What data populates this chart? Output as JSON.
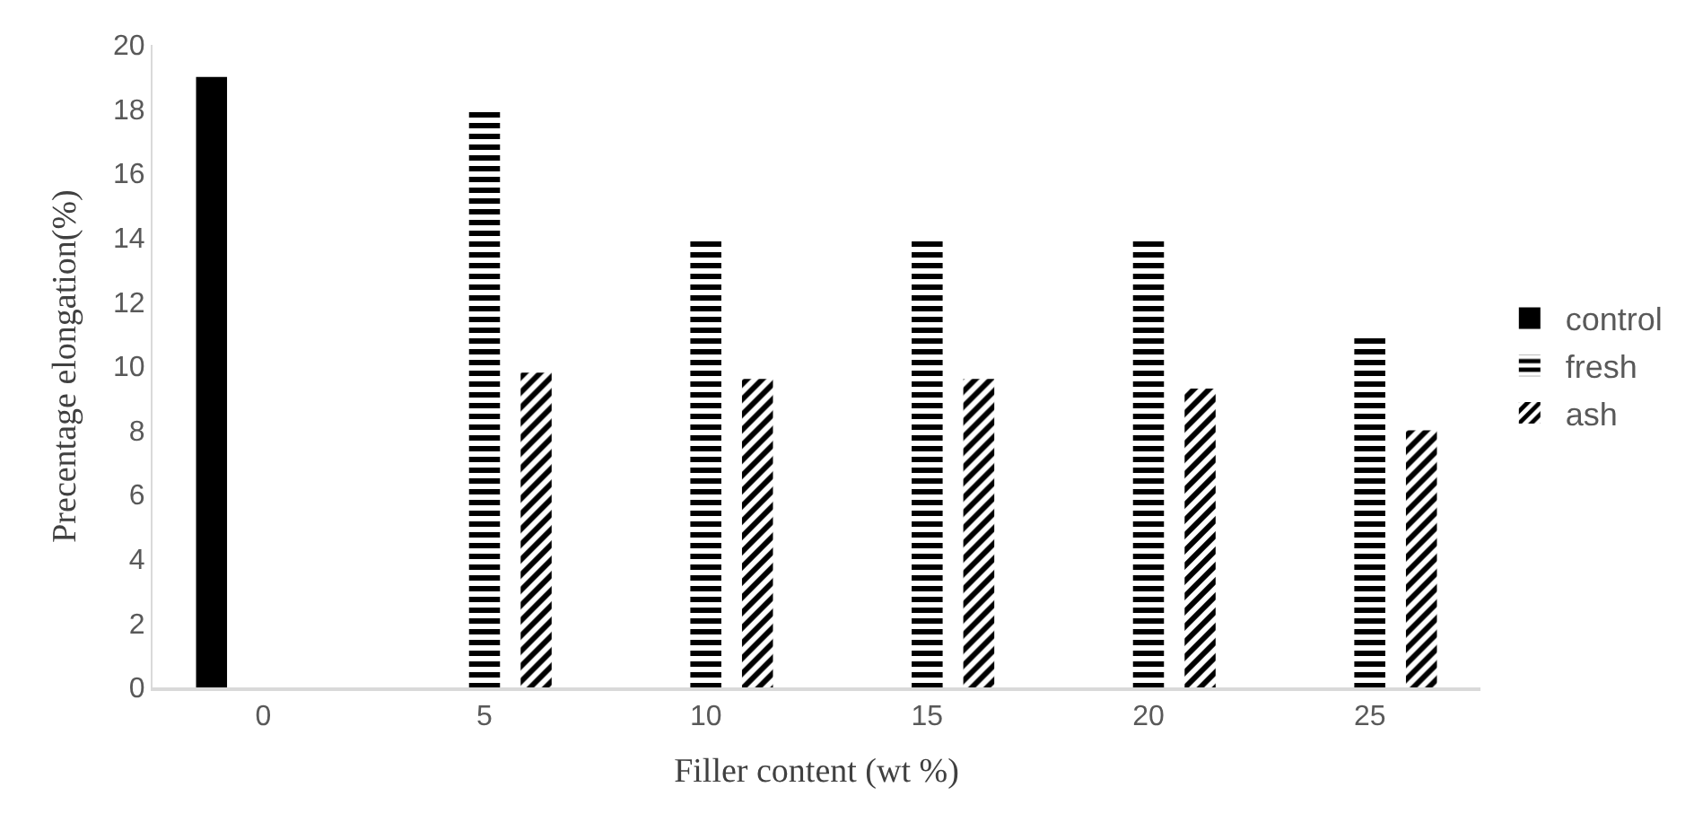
{
  "chart_data": {
    "type": "bar",
    "xlabel": "Filler content (wt %)",
    "ylabel": "Precentage elongation(%)",
    "categories": [
      "0",
      "5",
      "10",
      "15",
      "20",
      "25"
    ],
    "series": [
      {
        "name": "control",
        "color": "#000000",
        "values": [
          19,
          null,
          null,
          null,
          null,
          null
        ]
      },
      {
        "name": "fresh",
        "color": "#000000",
        "values": [
          null,
          18,
          14,
          14,
          14,
          11
        ]
      },
      {
        "name": "ash",
        "color": "#000000",
        "values": [
          null,
          9.8,
          9.6,
          9.6,
          9.3,
          8.0
        ]
      }
    ],
    "ylim": [
      0,
      20
    ],
    "yticks": [
      0,
      2,
      4,
      6,
      8,
      10,
      12,
      14,
      16,
      18,
      20
    ],
    "legend": "right"
  }
}
